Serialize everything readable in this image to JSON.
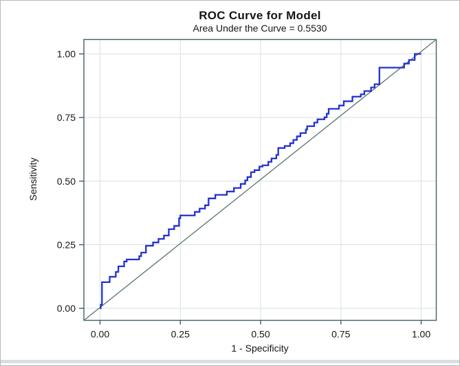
{
  "header": {
    "title": "ROC Curve for Model",
    "subtitle": "Area Under the Curve = 0.5530"
  },
  "colors": {
    "curve_blue": "#2230d0",
    "diagonal_teal": "#5e7a78",
    "frame_teal": "#3e5f63",
    "gridline": "#dde5e6",
    "text": "#151515",
    "bottom_strip": "#d6dee2",
    "page_border": "#b2babe"
  },
  "chart_data": {
    "type": "line",
    "subtype": "roc-step-curve",
    "title": "ROC Curve for Model",
    "subtitle": "Area Under the Curve = 0.5530",
    "auc": 0.553,
    "xlabel": "1 - Specificity",
    "ylabel": "Sensitivity",
    "xlim": [
      0,
      1
    ],
    "ylim": [
      0,
      1
    ],
    "grid": true,
    "xticks": [
      0.0,
      0.25,
      0.5,
      0.75,
      1.0
    ],
    "yticks": [
      0.0,
      0.25,
      0.5,
      0.75,
      1.0
    ],
    "xtick_labels": [
      "0.00",
      "0.25",
      "0.50",
      "0.75",
      "1.00"
    ],
    "ytick_labels": [
      "0.00",
      "0.25",
      "0.50",
      "0.75",
      "1.00"
    ],
    "legend": "none",
    "series": [
      {
        "name": "ROC step curve",
        "color": "#2230d0",
        "width": 2.3,
        "step_vertices": [
          [
            0.0,
            0.0
          ],
          [
            0.002,
            0.0
          ],
          [
            0.002,
            0.014
          ],
          [
            0.006,
            0.014
          ],
          [
            0.006,
            0.103
          ],
          [
            0.03,
            0.103
          ],
          [
            0.03,
            0.124
          ],
          [
            0.049,
            0.124
          ],
          [
            0.049,
            0.143
          ],
          [
            0.057,
            0.143
          ],
          [
            0.057,
            0.165
          ],
          [
            0.075,
            0.165
          ],
          [
            0.075,
            0.184
          ],
          [
            0.083,
            0.184
          ],
          [
            0.083,
            0.192
          ],
          [
            0.122,
            0.192
          ],
          [
            0.122,
            0.205
          ],
          [
            0.128,
            0.205
          ],
          [
            0.128,
            0.219
          ],
          [
            0.143,
            0.219
          ],
          [
            0.143,
            0.246
          ],
          [
            0.165,
            0.246
          ],
          [
            0.165,
            0.259
          ],
          [
            0.182,
            0.259
          ],
          [
            0.182,
            0.273
          ],
          [
            0.199,
            0.273
          ],
          [
            0.199,
            0.286
          ],
          [
            0.214,
            0.286
          ],
          [
            0.214,
            0.311
          ],
          [
            0.231,
            0.311
          ],
          [
            0.231,
            0.324
          ],
          [
            0.246,
            0.324
          ],
          [
            0.246,
            0.354
          ],
          [
            0.25,
            0.354
          ],
          [
            0.25,
            0.365
          ],
          [
            0.295,
            0.365
          ],
          [
            0.295,
            0.379
          ],
          [
            0.31,
            0.379
          ],
          [
            0.31,
            0.392
          ],
          [
            0.327,
            0.392
          ],
          [
            0.327,
            0.405
          ],
          [
            0.338,
            0.405
          ],
          [
            0.338,
            0.432
          ],
          [
            0.359,
            0.432
          ],
          [
            0.359,
            0.446
          ],
          [
            0.395,
            0.446
          ],
          [
            0.395,
            0.459
          ],
          [
            0.417,
            0.459
          ],
          [
            0.417,
            0.473
          ],
          [
            0.438,
            0.473
          ],
          [
            0.438,
            0.489
          ],
          [
            0.452,
            0.489
          ],
          [
            0.452,
            0.503
          ],
          [
            0.459,
            0.503
          ],
          [
            0.459,
            0.516
          ],
          [
            0.47,
            0.516
          ],
          [
            0.47,
            0.535
          ],
          [
            0.481,
            0.535
          ],
          [
            0.481,
            0.543
          ],
          [
            0.496,
            0.543
          ],
          [
            0.496,
            0.557
          ],
          [
            0.506,
            0.557
          ],
          [
            0.506,
            0.562
          ],
          [
            0.524,
            0.562
          ],
          [
            0.524,
            0.576
          ],
          [
            0.534,
            0.576
          ],
          [
            0.534,
            0.589
          ],
          [
            0.549,
            0.589
          ],
          [
            0.549,
            0.603
          ],
          [
            0.555,
            0.603
          ],
          [
            0.555,
            0.63
          ],
          [
            0.575,
            0.63
          ],
          [
            0.575,
            0.638
          ],
          [
            0.592,
            0.638
          ],
          [
            0.592,
            0.649
          ],
          [
            0.602,
            0.649
          ],
          [
            0.602,
            0.662
          ],
          [
            0.613,
            0.662
          ],
          [
            0.613,
            0.676
          ],
          [
            0.624,
            0.676
          ],
          [
            0.624,
            0.689
          ],
          [
            0.641,
            0.689
          ],
          [
            0.641,
            0.703
          ],
          [
            0.645,
            0.703
          ],
          [
            0.645,
            0.716
          ],
          [
            0.667,
            0.716
          ],
          [
            0.667,
            0.73
          ],
          [
            0.677,
            0.73
          ],
          [
            0.677,
            0.743
          ],
          [
            0.699,
            0.743
          ],
          [
            0.699,
            0.751
          ],
          [
            0.706,
            0.751
          ],
          [
            0.706,
            0.765
          ],
          [
            0.712,
            0.765
          ],
          [
            0.712,
            0.784
          ],
          [
            0.744,
            0.784
          ],
          [
            0.744,
            0.797
          ],
          [
            0.759,
            0.797
          ],
          [
            0.759,
            0.814
          ],
          [
            0.786,
            0.814
          ],
          [
            0.786,
            0.832
          ],
          [
            0.812,
            0.832
          ],
          [
            0.812,
            0.841
          ],
          [
            0.823,
            0.841
          ],
          [
            0.823,
            0.854
          ],
          [
            0.844,
            0.854
          ],
          [
            0.844,
            0.868
          ],
          [
            0.855,
            0.868
          ],
          [
            0.855,
            0.881
          ],
          [
            0.87,
            0.881
          ],
          [
            0.87,
            0.946
          ],
          [
            0.947,
            0.946
          ],
          [
            0.947,
            0.962
          ],
          [
            0.962,
            0.962
          ],
          [
            0.962,
            0.976
          ],
          [
            0.98,
            0.976
          ],
          [
            0.98,
            1.0
          ],
          [
            1.0,
            1.0
          ]
        ]
      },
      {
        "name": "Reference diagonal",
        "color": "#5e7a78",
        "width": 1.4,
        "points": [
          [
            0,
            0
          ],
          [
            1,
            1
          ]
        ],
        "note": "drawn corner-to-corner of plot frame"
      }
    ]
  }
}
